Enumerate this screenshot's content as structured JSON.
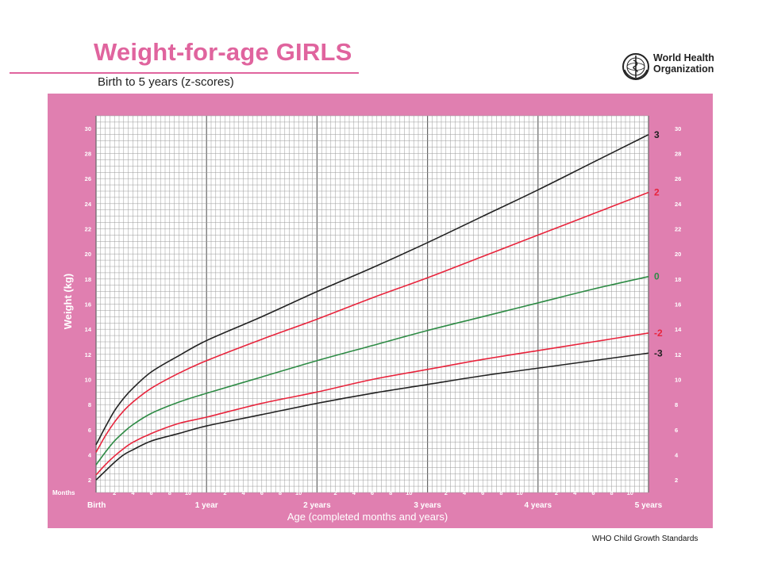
{
  "header": {
    "title": "Weight-for-age GIRLS",
    "subtitle": "Birth to 5 years (z-scores)",
    "org_line1": "World Health",
    "org_line2": "Organization",
    "org_logo_icon": "who-emblem-icon"
  },
  "footer": {
    "source": "WHO Child Growth Standards"
  },
  "colors": {
    "panel": "#e07fb0",
    "grid_bg": "#ffffff",
    "black": "#222222",
    "red": "#e8243c",
    "green": "#2e8b45",
    "title": "#e0649e"
  },
  "chart_data": {
    "type": "line",
    "title": "Weight-for-age GIRLS",
    "subtitle": "Birth to 5 years (z-scores)",
    "ylabel": "Weight (kg)",
    "xlabel": "Age (completed months and years)",
    "months_label": "Months",
    "ylim": [
      1,
      31
    ],
    "xlim_months": [
      0,
      60
    ],
    "y_ticks": [
      2,
      4,
      6,
      8,
      10,
      12,
      14,
      16,
      18,
      20,
      22,
      24,
      26,
      28,
      30
    ],
    "x_year_labels": [
      "Birth",
      "1 year",
      "2 years",
      "3 years",
      "4 years",
      "5 years"
    ],
    "x_month_labels": [
      "2",
      "4",
      "6",
      "8",
      "10"
    ],
    "grid": true,
    "x": [
      0,
      1,
      2,
      3,
      4,
      6,
      9,
      12,
      18,
      24,
      30,
      36,
      42,
      48,
      54,
      60
    ],
    "series": [
      {
        "name": "3",
        "color": "black",
        "values": [
          4.8,
          6.2,
          7.5,
          8.5,
          9.3,
          10.6,
          11.9,
          13.1,
          15.0,
          17.0,
          18.9,
          20.9,
          23.0,
          25.1,
          27.3,
          29.5
        ]
      },
      {
        "name": "2",
        "color": "red",
        "values": [
          4.2,
          5.5,
          6.6,
          7.5,
          8.2,
          9.3,
          10.5,
          11.5,
          13.2,
          14.8,
          16.5,
          18.1,
          19.8,
          21.5,
          23.2,
          24.9
        ]
      },
      {
        "name": "0",
        "color": "green",
        "values": [
          3.2,
          4.2,
          5.1,
          5.8,
          6.4,
          7.3,
          8.2,
          8.9,
          10.2,
          11.5,
          12.7,
          13.9,
          15.0,
          16.1,
          17.2,
          18.2
        ]
      },
      {
        "name": "-2",
        "color": "red",
        "values": [
          2.4,
          3.2,
          3.9,
          4.5,
          5.0,
          5.7,
          6.5,
          7.0,
          8.1,
          9.0,
          10.0,
          10.8,
          11.6,
          12.3,
          13.0,
          13.7
        ]
      },
      {
        "name": "-3",
        "color": "black",
        "values": [
          2.0,
          2.7,
          3.4,
          4.0,
          4.4,
          5.1,
          5.7,
          6.3,
          7.2,
          8.1,
          8.9,
          9.6,
          10.3,
          10.9,
          11.5,
          12.1
        ]
      }
    ]
  }
}
